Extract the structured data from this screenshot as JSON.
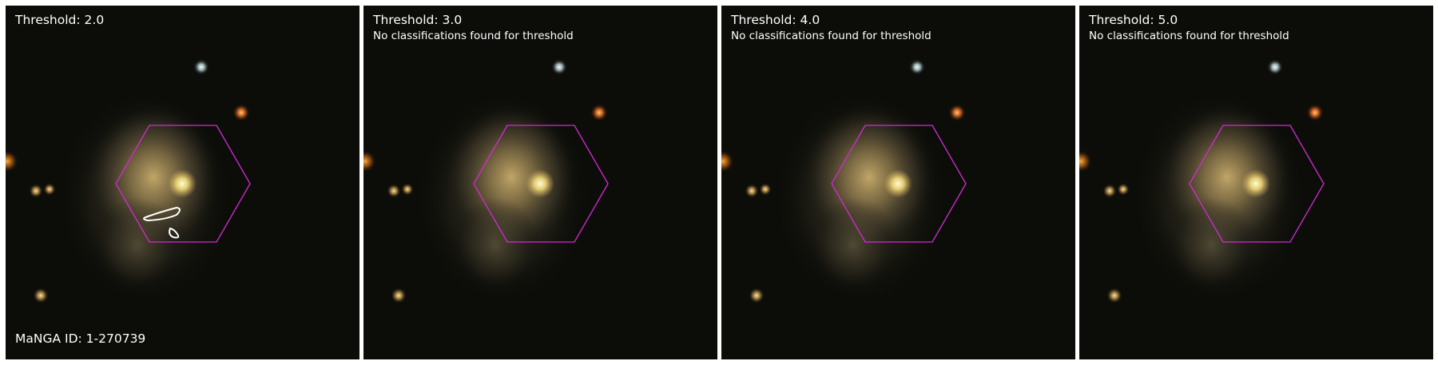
{
  "panels": [
    {
      "title": "Threshold: 2.0",
      "note": "",
      "footer": "MaNGA ID: 1-270739",
      "has_contours": true
    },
    {
      "title": "Threshold: 3.0",
      "note": "No classifications found for threshold",
      "footer": "",
      "has_contours": false
    },
    {
      "title": "Threshold: 4.0",
      "note": "No classifications found for threshold",
      "footer": "",
      "has_contours": false
    },
    {
      "title": "Threshold: 5.0",
      "note": "No classifications found for threshold",
      "footer": "",
      "has_contours": false
    }
  ],
  "colors": {
    "background": "#0c0d09",
    "hexagon": "#d42ad4",
    "contour": "#ffffff",
    "galaxy_core": "#fff0a0",
    "galaxy_halo": "#a08a55"
  }
}
